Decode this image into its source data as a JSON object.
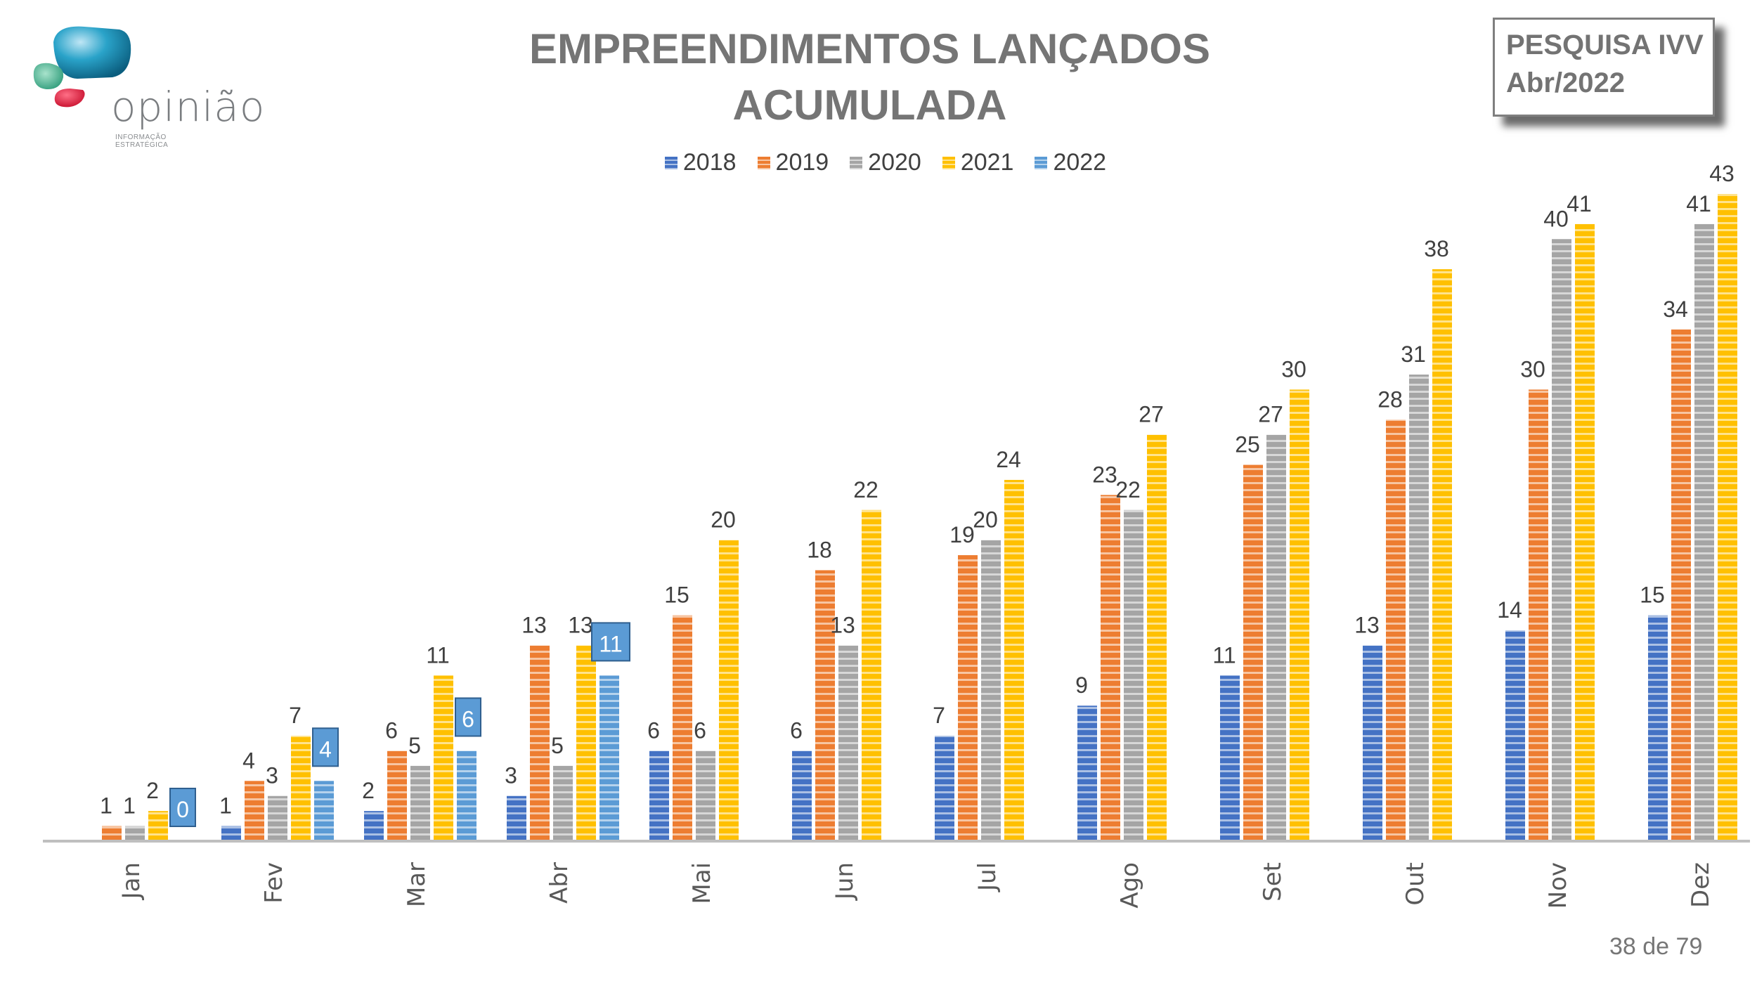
{
  "logo": {
    "name": "opinião",
    "tagline": "INFORMAÇÃO ESTRATÉGICA"
  },
  "title_line1": "EMPREENDIMENTOS LANÇADOS",
  "title_line2": "ACUMULADA",
  "survey_box": {
    "line1": "PESQUISA IVV",
    "line2": "Abr/2022"
  },
  "page_indicator": "38 de 79",
  "chart_data": {
    "type": "bar",
    "title": "EMPREENDIMENTOS LANÇADOS ACUMULADA",
    "xlabel": "",
    "ylabel": "",
    "ylim": [
      0,
      45
    ],
    "grid": false,
    "legend_position": "top-center",
    "categories": [
      "Jan",
      "Fev",
      "Mar",
      "Abr",
      "Mai",
      "Jun",
      "Jul",
      "Ago",
      "Set",
      "Out",
      "Nov",
      "Dez"
    ],
    "series": [
      {
        "name": "2018",
        "color": "#4472c4",
        "values": [
          0,
          1,
          2,
          3,
          6,
          6,
          7,
          9,
          11,
          13,
          14,
          15
        ],
        "labels_shown": [
          false,
          true,
          true,
          true,
          true,
          true,
          true,
          true,
          true,
          true,
          true,
          true
        ]
      },
      {
        "name": "2019",
        "color": "#ed7d31",
        "values": [
          1,
          4,
          6,
          13,
          15,
          18,
          19,
          23,
          25,
          28,
          30,
          34
        ]
      },
      {
        "name": "2020",
        "color": "#a5a5a5",
        "values": [
          1,
          3,
          5,
          5,
          6,
          13,
          20,
          22,
          27,
          31,
          40,
          41
        ]
      },
      {
        "name": "2021",
        "color": "#ffc000",
        "values": [
          2,
          7,
          11,
          13,
          20,
          22,
          24,
          27,
          30,
          38,
          41,
          43
        ]
      },
      {
        "name": "2022",
        "color": "#5b9bd5",
        "values": [
          0,
          4,
          6,
          11,
          null,
          null,
          null,
          null,
          null,
          null,
          null,
          null
        ],
        "label_style": "boxed"
      }
    ]
  }
}
